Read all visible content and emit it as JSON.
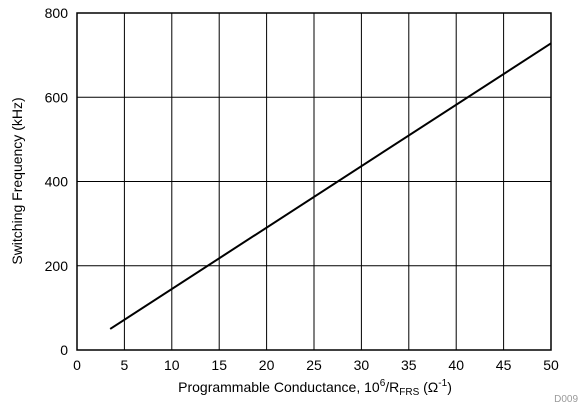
{
  "chart_data": {
    "type": "line",
    "title": "",
    "xlabel": {
      "main": "Programmable Conductance, 10",
      "sup1": "6",
      "mid": "/R",
      "sub": "FRS",
      "open": " (Ω",
      "sup2": "-1",
      "close": ")"
    },
    "ylabel": "Switching Frequency (kHz)",
    "xlim": [
      0,
      50
    ],
    "ylim": [
      0,
      800
    ],
    "xticks": [
      0,
      5,
      10,
      15,
      20,
      25,
      30,
      35,
      40,
      45,
      50
    ],
    "yticks": [
      0,
      200,
      400,
      600,
      800
    ],
    "grid": true,
    "series": [
      {
        "x": [
          3.5,
          50
        ],
        "y": [
          50,
          728
        ]
      }
    ],
    "figure_id": "D009"
  }
}
